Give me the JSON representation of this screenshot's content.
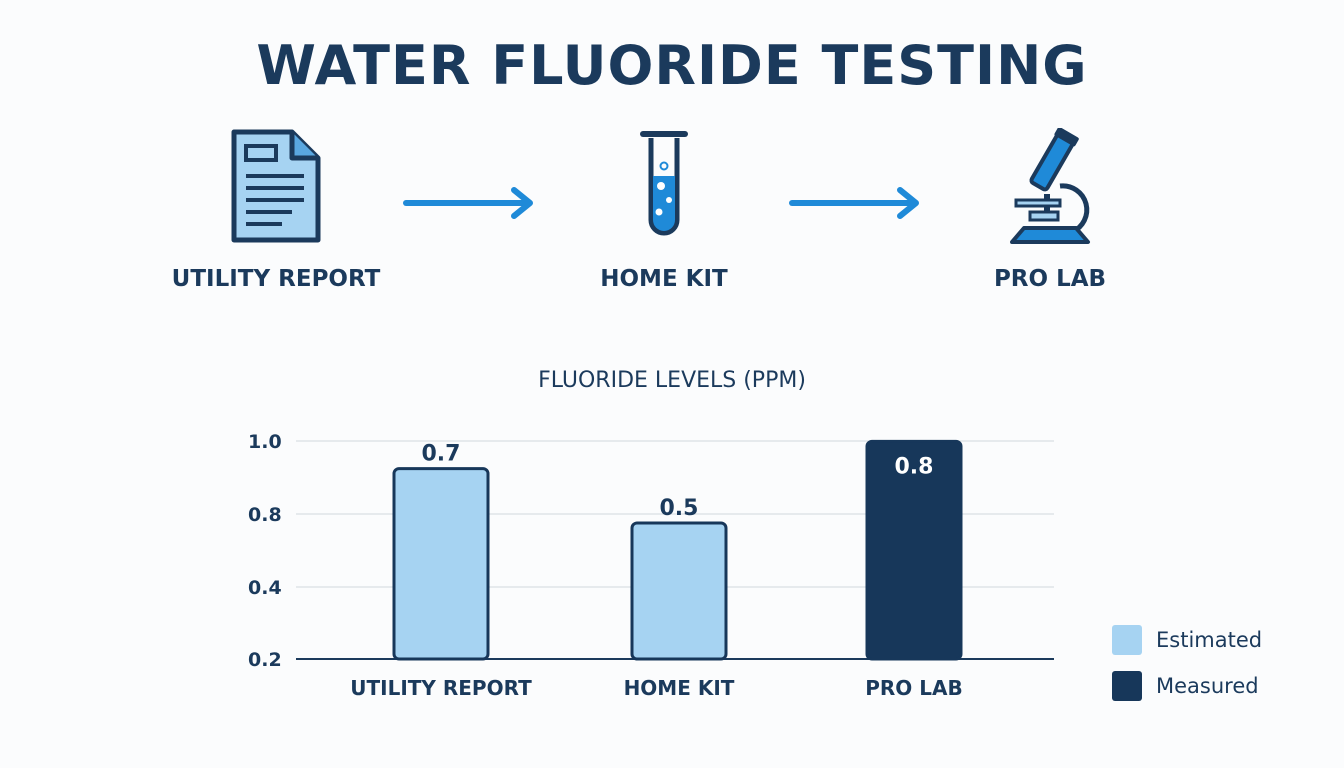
{
  "title": "WATER FLUORIDE TESTING",
  "steps": [
    {
      "label": "UTILITY REPORT",
      "icon": "document-icon"
    },
    {
      "label": "HOME KIT",
      "icon": "test-tube-icon"
    },
    {
      "label": "PRO LAB",
      "icon": "microscope-icon"
    }
  ],
  "colors": {
    "navy": "#1b3a5c",
    "accent_blue": "#1f8ad8",
    "light_blue": "#a6d3f2",
    "dark_bar": "#17375a",
    "grid": "#dfe3e8"
  },
  "chart_data": {
    "type": "bar",
    "title": "FLUORIDE LEVELS (PPM)",
    "categories": [
      "UTILITY REPORT",
      "HOME KIT",
      "PRO LAB"
    ],
    "values": [
      0.7,
      0.5,
      0.8
    ],
    "value_labels": [
      "0.7",
      "0.5",
      "0.8"
    ],
    "bar_series": [
      "Estimated",
      "Estimated",
      "Measured"
    ],
    "y_ticks": [
      "1.0",
      "0.8",
      "0.4",
      "0.2"
    ],
    "grid": true,
    "legend": [
      {
        "name": "Estimated",
        "color": "#a6d3f2"
      },
      {
        "name": "Measured",
        "color": "#17375a"
      }
    ],
    "legend_position": "bottom-right"
  }
}
